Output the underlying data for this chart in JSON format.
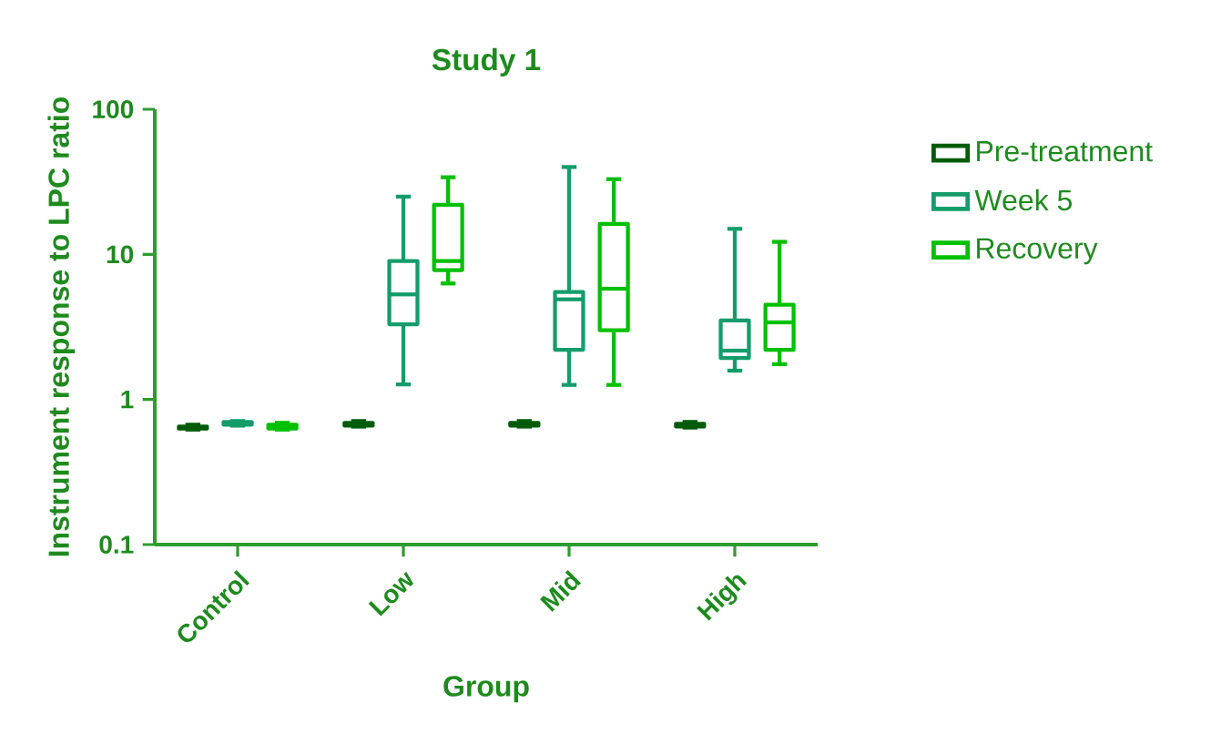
{
  "chart_data": {
    "type": "box",
    "title": "Study 1",
    "xlabel": "Group",
    "ylabel": "Instrument response to LPC ratio",
    "categories": [
      "Control",
      "Low",
      "Mid",
      "High"
    ],
    "log": true,
    "ylim": [
      0.1,
      100
    ],
    "yticks": [
      0.1,
      1,
      10,
      100
    ],
    "legend": "right",
    "series": [
      {
        "name": "Pre-treatment",
        "color": "#005c0a",
        "boxes": [
          {
            "low": 0.62,
            "q1": 0.63,
            "median": 0.64,
            "q3": 0.65,
            "high": 0.67
          },
          {
            "low": 0.65,
            "q1": 0.66,
            "median": 0.68,
            "q3": 0.69,
            "high": 0.71
          },
          {
            "low": 0.65,
            "q1": 0.66,
            "median": 0.68,
            "q3": 0.69,
            "high": 0.71
          },
          {
            "low": 0.64,
            "q1": 0.65,
            "median": 0.67,
            "q3": 0.68,
            "high": 0.7
          }
        ]
      },
      {
        "name": "Week 5",
        "color": "#139c6c",
        "boxes": [
          {
            "low": 0.66,
            "q1": 0.67,
            "median": 0.68,
            "q3": 0.7,
            "high": 0.71
          },
          {
            "low": 1.27,
            "q1": 3.3,
            "median": 5.3,
            "q3": 9.0,
            "high": 25
          },
          {
            "low": 1.26,
            "q1": 2.2,
            "median": 4.9,
            "q3": 5.5,
            "high": 40
          },
          {
            "low": 1.58,
            "q1": 1.93,
            "median": 2.17,
            "q3": 3.5,
            "high": 15
          }
        ]
      },
      {
        "name": "Recovery",
        "color": "#00c000",
        "boxes": [
          {
            "low": 0.62,
            "q1": 0.63,
            "median": 0.65,
            "q3": 0.67,
            "high": 0.69
          },
          {
            "low": 6.3,
            "q1": 7.8,
            "median": 9.0,
            "q3": 22,
            "high": 34
          },
          {
            "low": 1.26,
            "q1": 3.0,
            "median": 5.8,
            "q3": 16.2,
            "high": 33
          },
          {
            "low": 1.75,
            "q1": 2.2,
            "median": 3.4,
            "q3": 4.5,
            "high": 12.2
          }
        ]
      }
    ]
  }
}
